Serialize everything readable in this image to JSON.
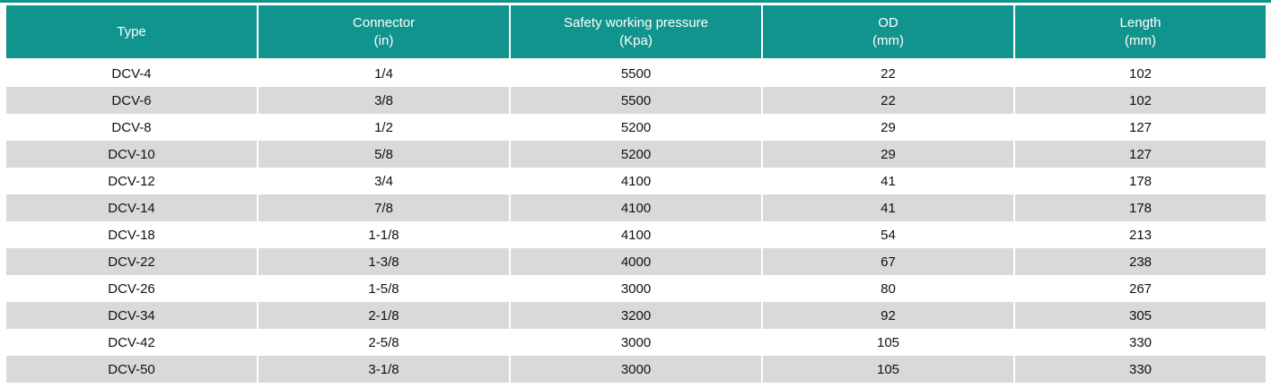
{
  "chart_data": {
    "type": "table",
    "columns": [
      {
        "key": "type",
        "title": "Type",
        "unit": ""
      },
      {
        "key": "connector",
        "title": "Connector",
        "unit": "(in)"
      },
      {
        "key": "safety-working-pressure",
        "title": "Safety working pressure",
        "unit": "(Kpa)"
      },
      {
        "key": "od",
        "title": "OD",
        "unit": "(mm)"
      },
      {
        "key": "length",
        "title": "Length",
        "unit": "(mm)"
      }
    ],
    "rows": [
      [
        "DCV-4",
        "1/4",
        "5500",
        "22",
        "102"
      ],
      [
        "DCV-6",
        "3/8",
        "5500",
        "22",
        "102"
      ],
      [
        "DCV-8",
        "1/2",
        "5200",
        "29",
        "127"
      ],
      [
        "DCV-10",
        "5/8",
        "5200",
        "29",
        "127"
      ],
      [
        "DCV-12",
        "3/4",
        "4100",
        "41",
        "178"
      ],
      [
        "DCV-14",
        "7/8",
        "4100",
        "41",
        "178"
      ],
      [
        "DCV-18",
        "1-1/8",
        "4100",
        "54",
        "213"
      ],
      [
        "DCV-22",
        "1-3/8",
        "4000",
        "67",
        "238"
      ],
      [
        "DCV-26",
        "1-5/8",
        "3000",
        "80",
        "267"
      ],
      [
        "DCV-34",
        "2-1/8",
        "3200",
        "92",
        "305"
      ],
      [
        "DCV-42",
        "2-5/8",
        "3000",
        "105",
        "330"
      ],
      [
        "DCV-50",
        "3-1/8",
        "3000",
        "105",
        "330"
      ]
    ]
  },
  "colors": {
    "header_bg": "#12948E",
    "header_text": "#FFFFFF",
    "row_even_bg": "#FFFFFF",
    "row_odd_bg": "#D9D9D9",
    "body_text": "#111111",
    "separator": "#FFFFFF"
  }
}
